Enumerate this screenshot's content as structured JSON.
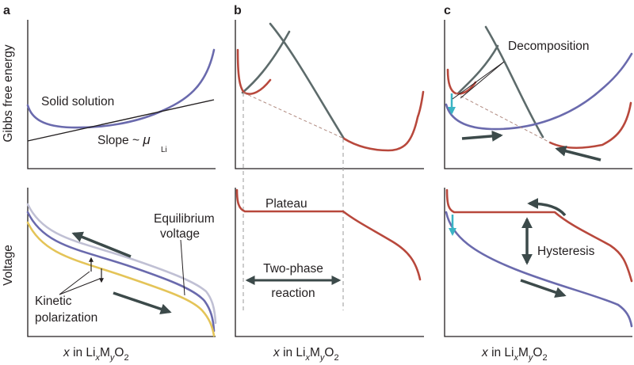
{
  "panels": {
    "a": {
      "letter": "a",
      "y_label_top": "Gibbs free energy",
      "y_label_bottom": "Voltage",
      "solid_solution": "Solid solution",
      "slope_prefix": "Slope ~ ",
      "slope_mu": "μ",
      "slope_sub": "Li",
      "equilibrium_line1": "Equilibrium",
      "equilibrium_line2": "voltage",
      "kinetic_line1": "Kinetic",
      "kinetic_line2": "polarization"
    },
    "b": {
      "letter": "b",
      "plateau": "Plateau",
      "two_phase_line1": "Two-phase",
      "two_phase_line2": "reaction"
    },
    "c": {
      "letter": "c",
      "decomposition": "Decomposition",
      "hysteresis": "Hysteresis"
    }
  },
  "xaxis": {
    "x": "x",
    "in": "in Li",
    "sub_x": "x",
    "m": "M",
    "sub_y": "y",
    "o": "O",
    "sub_2": "2"
  },
  "colors": {
    "solid_solution": "#6a6aad",
    "two_phase": "#b8483c",
    "gibbs_secondary": "#5d6b6b",
    "equilibrium_voltage": "#c0c0d4",
    "kinetic_voltage": "#e4c458",
    "arrows": "#3c4a4a",
    "decomposition_arrow": "#3ab4c4",
    "axes": "#231f20"
  }
}
